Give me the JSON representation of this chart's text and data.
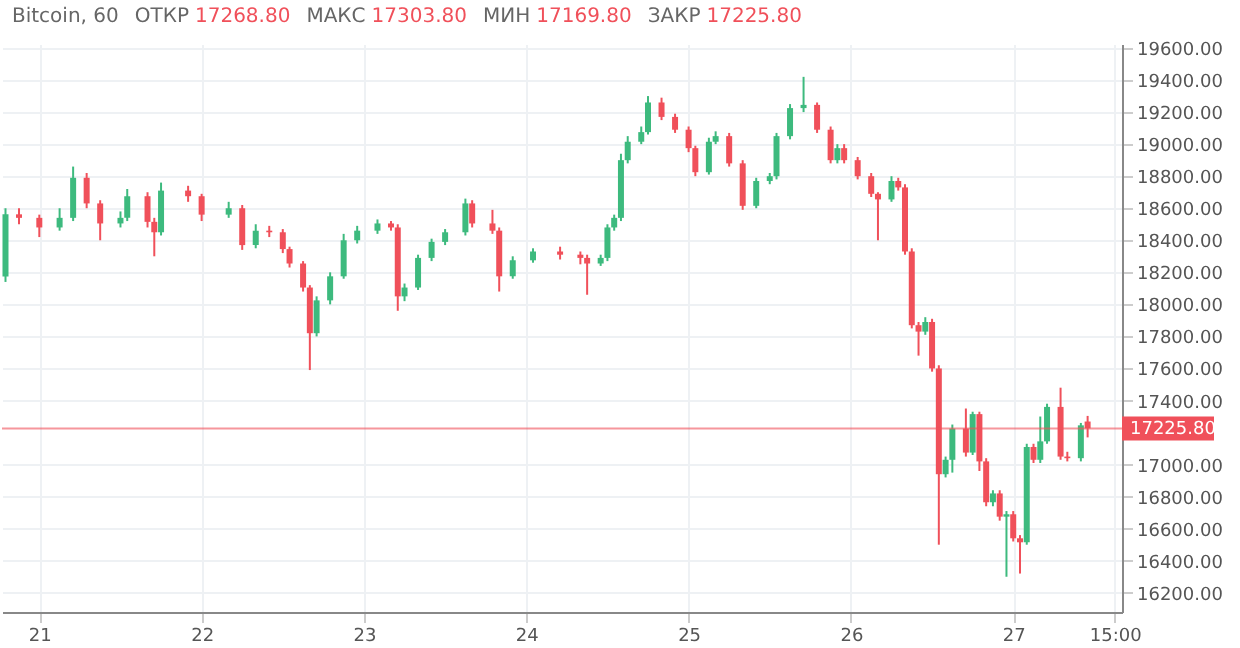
{
  "chart_data": {
    "type": "candlestick",
    "title": "Bitcoin, 60",
    "annotations": [
      "ОТКР 17268.80",
      "МАКС 17303.80",
      "МИН 17169.80",
      "ЗАКР 17225.80"
    ],
    "x": [
      "--11-20T19:00",
      "--11-20T21:00",
      "--11-21T00:00",
      "--11-21T03:00",
      "--11-21T05:00",
      "--11-21T07:00",
      "--11-21T09:00",
      "--11-21T12:00",
      "--11-21T13:00",
      "--11-21T16:00",
      "--11-21T17:00",
      "--11-21T18:00",
      "--11-21T22:00",
      "--11-22T00:00",
      "--11-22T04:00",
      "--11-22T06:00",
      "--11-22T08:00",
      "--11-22T10:00",
      "--11-22T12:00",
      "--11-22T13:00",
      "--11-22T15:00",
      "--11-22T16:00",
      "--11-22T17:00",
      "--11-22T19:00",
      "--11-22T21:00",
      "--11-22T23:00",
      "--11-23T02:00",
      "--11-23T04:00",
      "--11-23T05:00",
      "--11-23T06:00",
      "--11-23T08:00",
      "--11-23T10:00",
      "--11-23T12:00",
      "--11-23T15:00",
      "--11-23T16:00",
      "--11-23T19:00",
      "--11-23T20:00",
      "--11-23T22:00",
      "--11-24T01:00",
      "--11-24T05:00",
      "--11-24T08:00",
      "--11-24T09:00",
      "--11-24T11:00",
      "--11-24T12:00",
      "--11-24T13:00",
      "--11-24T14:00",
      "--11-24T15:00",
      "--11-24T17:00",
      "--11-24T18:00",
      "--11-24T20:00",
      "--11-24T22:00",
      "--11-25T00:00",
      "--11-25T01:00",
      "--11-25T03:00",
      "--11-25T04:00",
      "--11-25T06:00",
      "--11-25T08:00",
      "--11-25T10:00",
      "--11-25T12:00",
      "--11-25T13:00",
      "--11-25T15:00",
      "--11-25T17:00",
      "--11-25T19:00",
      "--11-25T21:00",
      "--11-25T22:00",
      "--11-25T23:00",
      "--11-26T01:00",
      "--11-26T03:00",
      "--11-26T04:00",
      "--11-26T06:00",
      "--11-26T07:00",
      "--11-26T08:00",
      "--11-26T09:00",
      "--11-26T10:00",
      "--11-26T11:00",
      "--11-26T12:00",
      "--11-26T13:00",
      "--11-26T14:00",
      "--11-26T15:00",
      "--11-26T17:00",
      "--11-26T18:00",
      "--11-26T19:00",
      "--11-26T20:00",
      "--11-26T21:00",
      "--11-26T22:00",
      "--11-26T23:00",
      "--11-27T00:00",
      "--11-27T01:00",
      "--11-27T02:00",
      "--11-27T03:00",
      "--11-27T04:00",
      "--11-27T05:00",
      "--11-27T07:00",
      "--11-27T08:00",
      "--11-27T10:00",
      "--11-27T11:00"
    ],
    "ohlc": [
      [
        18174,
        18600,
        18140,
        18562
      ],
      [
        18562,
        18600,
        18500,
        18540
      ],
      [
        18540,
        18560,
        18420,
        18480
      ],
      [
        18480,
        18600,
        18460,
        18540
      ],
      [
        18540,
        18860,
        18520,
        18790
      ],
      [
        18790,
        18820,
        18600,
        18630
      ],
      [
        18630,
        18650,
        18400,
        18505
      ],
      [
        18505,
        18580,
        18480,
        18540
      ],
      [
        18540,
        18720,
        18520,
        18675
      ],
      [
        18675,
        18700,
        18480,
        18515
      ],
      [
        18515,
        18540,
        18300,
        18450
      ],
      [
        18450,
        18760,
        18430,
        18710
      ],
      [
        18710,
        18740,
        18640,
        18675
      ],
      [
        18675,
        18690,
        18520,
        18560
      ],
      [
        18560,
        18640,
        18540,
        18600
      ],
      [
        18600,
        18620,
        18340,
        18370
      ],
      [
        18370,
        18500,
        18350,
        18460
      ],
      [
        18460,
        18490,
        18420,
        18450
      ],
      [
        18450,
        18470,
        18320,
        18345
      ],
      [
        18345,
        18360,
        18230,
        18255
      ],
      [
        18255,
        18270,
        18080,
        18105
      ],
      [
        18105,
        18120,
        17590,
        17820
      ],
      [
        17820,
        18050,
        17800,
        18025
      ],
      [
        18025,
        18200,
        18000,
        18175
      ],
      [
        18175,
        18440,
        18160,
        18400
      ],
      [
        18400,
        18490,
        18380,
        18460
      ],
      [
        18460,
        18530,
        18440,
        18505
      ],
      [
        18505,
        18520,
        18460,
        18480
      ],
      [
        18480,
        18500,
        17960,
        18050
      ],
      [
        18050,
        18130,
        18020,
        18105
      ],
      [
        18105,
        18310,
        18090,
        18290
      ],
      [
        18290,
        18410,
        18270,
        18390
      ],
      [
        18390,
        18470,
        18370,
        18450
      ],
      [
        18450,
        18660,
        18430,
        18630
      ],
      [
        18630,
        18650,
        18480,
        18505
      ],
      [
        18505,
        18590,
        18440,
        18460
      ],
      [
        18460,
        18480,
        18080,
        18175
      ],
      [
        18175,
        18300,
        18160,
        18275
      ],
      [
        18275,
        18350,
        18260,
        18330
      ],
      [
        18330,
        18360,
        18280,
        18310
      ],
      [
        18310,
        18330,
        18250,
        18290
      ],
      [
        18290,
        18310,
        18060,
        18255
      ],
      [
        18255,
        18310,
        18240,
        18290
      ],
      [
        18290,
        18500,
        18270,
        18480
      ],
      [
        18480,
        18560,
        18460,
        18540
      ],
      [
        18540,
        18940,
        18520,
        18900
      ],
      [
        18900,
        19050,
        18880,
        19015
      ],
      [
        19015,
        19110,
        19000,
        19075
      ],
      [
        19075,
        19300,
        19060,
        19260
      ],
      [
        19260,
        19290,
        19150,
        19170
      ],
      [
        19170,
        19190,
        19070,
        19090
      ],
      [
        19090,
        19110,
        18950,
        18975
      ],
      [
        18975,
        18990,
        18800,
        18825
      ],
      [
        18825,
        19040,
        18810,
        19015
      ],
      [
        19015,
        19080,
        19000,
        19050
      ],
      [
        19050,
        19070,
        18860,
        18880
      ],
      [
        18880,
        18900,
        18590,
        18615
      ],
      [
        18615,
        18790,
        18600,
        18770
      ],
      [
        18770,
        18820,
        18750,
        18800
      ],
      [
        18800,
        19070,
        18780,
        19050
      ],
      [
        19050,
        19250,
        19030,
        19225
      ],
      [
        19225,
        19420,
        19200,
        19245
      ],
      [
        19245,
        19260,
        19070,
        19090
      ],
      [
        19090,
        19110,
        18880,
        18900
      ],
      [
        18900,
        19000,
        18880,
        18975
      ],
      [
        18975,
        19000,
        18880,
        18900
      ],
      [
        18900,
        18920,
        18780,
        18800
      ],
      [
        18800,
        18820,
        18670,
        18690
      ],
      [
        18690,
        18700,
        18400,
        18655
      ],
      [
        18655,
        18800,
        18640,
        18770
      ],
      [
        18770,
        18790,
        18710,
        18730
      ],
      [
        18730,
        18750,
        18310,
        18330
      ],
      [
        18330,
        18350,
        17850,
        17870
      ],
      [
        17870,
        17890,
        17680,
        17830
      ],
      [
        17830,
        17920,
        17810,
        17890
      ],
      [
        17890,
        17910,
        17580,
        17600
      ],
      [
        17600,
        17620,
        16500,
        16940
      ],
      [
        16940,
        17050,
        16920,
        17030
      ],
      [
        17030,
        17250,
        16950,
        17225
      ],
      [
        17225,
        17350,
        17050,
        17075
      ],
      [
        17075,
        17330,
        17060,
        17315
      ],
      [
        17315,
        17330,
        16960,
        17020
      ],
      [
        17020,
        17040,
        16740,
        16765
      ],
      [
        16765,
        16840,
        16740,
        16820
      ],
      [
        16820,
        16840,
        16650,
        16675
      ],
      [
        16675,
        16710,
        16300,
        16690
      ],
      [
        16690,
        16710,
        16520,
        16540
      ],
      [
        16540,
        16560,
        16320,
        16515
      ],
      [
        16515,
        17130,
        16500,
        17110
      ],
      [
        17110,
        17130,
        17010,
        17030
      ],
      [
        17030,
        17300,
        17010,
        17145
      ],
      [
        17145,
        17380,
        17130,
        17360
      ],
      [
        17360,
        17480,
        17030,
        17050
      ],
      [
        17050,
        17080,
        17020,
        17040
      ],
      [
        17040,
        17260,
        17020,
        17245
      ],
      [
        17268.8,
        17303.8,
        17169.8,
        17225.8
      ]
    ],
    "colors": [
      "#3dba7e",
      "#f0505a",
      "#f0505a",
      "#3dba7e",
      "#3dba7e",
      "#f0505a",
      "#f0505a",
      "#3dba7e",
      "#3dba7e",
      "#f0505a",
      "#f0505a",
      "#3dba7e",
      "#f0505a",
      "#f0505a",
      "#3dba7e",
      "#f0505a",
      "#3dba7e",
      "#f0505a",
      "#f0505a",
      "#f0505a",
      "#f0505a",
      "#f0505a",
      "#3dba7e",
      "#3dba7e",
      "#3dba7e",
      "#3dba7e",
      "#3dba7e",
      "#f0505a",
      "#f0505a",
      "#3dba7e",
      "#3dba7e",
      "#3dba7e",
      "#3dba7e",
      "#3dba7e",
      "#f0505a",
      "#f0505a",
      "#f0505a",
      "#3dba7e",
      "#3dba7e",
      "#f0505a",
      "#f0505a",
      "#f0505a",
      "#3dba7e",
      "#3dba7e",
      "#3dba7e",
      "#3dba7e",
      "#3dba7e",
      "#3dba7e",
      "#3dba7e",
      "#f0505a",
      "#f0505a",
      "#f0505a",
      "#f0505a",
      "#3dba7e",
      "#3dba7e",
      "#f0505a",
      "#f0505a",
      "#3dba7e",
      "#3dba7e",
      "#3dba7e",
      "#3dba7e",
      "#3dba7e",
      "#f0505a",
      "#f0505a",
      "#3dba7e",
      "#f0505a",
      "#f0505a",
      "#f0505a",
      "#f0505a",
      "#3dba7e",
      "#f0505a",
      "#f0505a",
      "#f0505a",
      "#f0505a",
      "#3dba7e",
      "#f0505a",
      "#f0505a",
      "#3dba7e",
      "#3dba7e",
      "#f0505a",
      "#3dba7e",
      "#f0505a",
      "#f0505a",
      "#3dba7e",
      "#f0505a",
      "#3dba7e",
      "#f0505a",
      "#f0505a",
      "#3dba7e",
      "#f0505a",
      "#3dba7e",
      "#3dba7e",
      "#f0505a",
      "#f0505a",
      "#3dba7e",
      "#f0505a"
    ],
    "xlim": [
      "--11-20T18:29",
      "--11-27T16:05"
    ],
    "xticks": [
      {
        "value": "--11-21",
        "label": "21"
      },
      {
        "value": "--11-22",
        "label": "22"
      },
      {
        "value": "--11-23",
        "label": "23"
      },
      {
        "value": "--11-24",
        "label": "24"
      },
      {
        "value": "--11-25",
        "label": "25"
      },
      {
        "value": "--11-26",
        "label": "26"
      },
      {
        "value": "--11-27",
        "label": "27"
      },
      {
        "value": "--11-27T15:00",
        "label": "15:00"
      }
    ],
    "ylim": [
      16080,
      19625
    ],
    "yticks": [
      {
        "value": 16200,
        "label": "16200.00"
      },
      {
        "value": 16400,
        "label": "16400.00"
      },
      {
        "value": 16600,
        "label": "16600.00"
      },
      {
        "value": 16800,
        "label": "16800.00"
      },
      {
        "value": 17000,
        "label": "17000.00"
      },
      {
        "value": 17400,
        "label": "17400.00"
      },
      {
        "value": 17600,
        "label": "17600.00"
      },
      {
        "value": 17800,
        "label": "17800.00"
      },
      {
        "value": 18000,
        "label": "18000.00"
      },
      {
        "value": 18200,
        "label": "18200.00"
      },
      {
        "value": 18400,
        "label": "18400.00"
      },
      {
        "value": 18600,
        "label": "18600.00"
      },
      {
        "value": 18800,
        "label": "18800.00"
      },
      {
        "value": 19000,
        "label": "19000.00"
      },
      {
        "value": 19200,
        "label": "19200.00"
      },
      {
        "value": 19400,
        "label": "19400.00"
      },
      {
        "value": 19600,
        "label": "19600.00"
      }
    ],
    "ref_lines": [
      {
        "axis": "y",
        "value": 17225.8,
        "label": "17225.80",
        "color": "#f0505a"
      }
    ],
    "grid": true
  }
}
